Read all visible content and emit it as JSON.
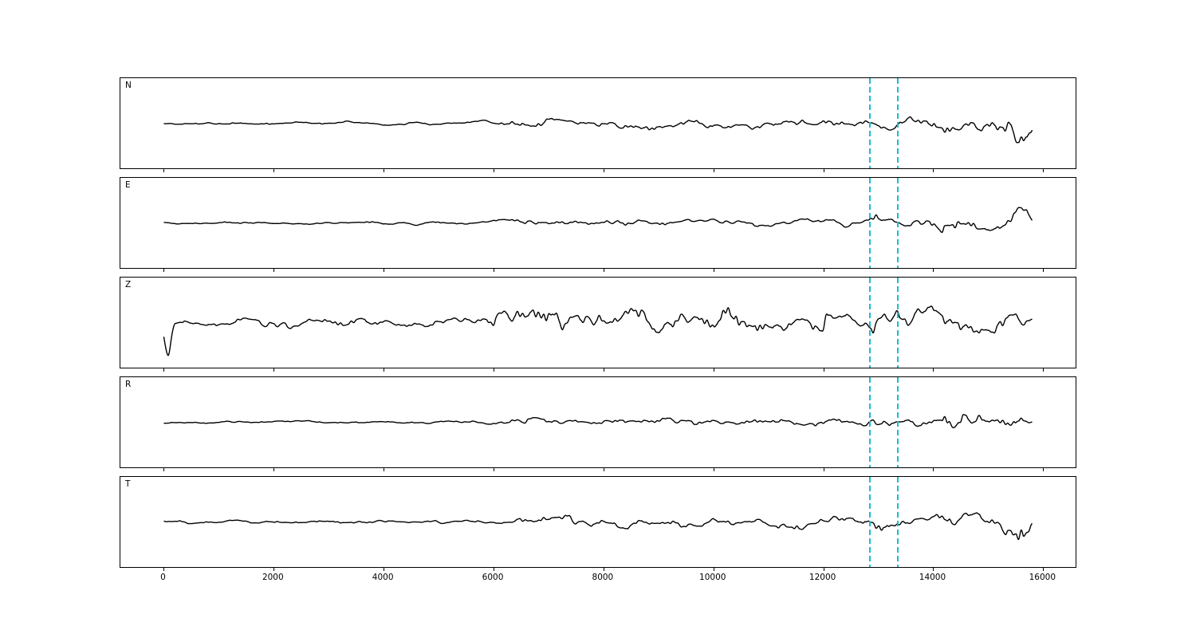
{
  "figure": {
    "background": "#ffffff",
    "frame_color": "#000000",
    "trace_color": "#000000",
    "marker_color": "#17becf"
  },
  "chart_data": {
    "type": "line",
    "title": "",
    "xlabel": "",
    "ylabel": "",
    "description": "Five-channel seismogram waveform display (channels N, E, Z, R, T) sharing one x-axis in samples; two dashed cyan vertical pick lines on every panel",
    "x_range": [
      -790,
      16590
    ],
    "x_ticks": [
      0,
      2000,
      4000,
      6000,
      8000,
      10000,
      12000,
      14000,
      16000
    ],
    "x_tick_labels": [
      "0",
      "2000",
      "4000",
      "6000",
      "8000",
      "10000",
      "12000",
      "14000",
      "16000"
    ],
    "grid": false,
    "legend": "none",
    "marker_lines_x": [
      12850,
      13350
    ],
    "marker_style": "dashed",
    "channels": [
      {
        "label": "N",
        "seed": 101,
        "data_start": 0,
        "data_end": 15800,
        "envelope": [
          [
            0,
            2.5
          ],
          [
            5500,
            3
          ],
          [
            6300,
            7
          ],
          [
            7500,
            8
          ],
          [
            9000,
            8
          ],
          [
            10500,
            7.5
          ],
          [
            12600,
            8
          ],
          [
            12900,
            16
          ],
          [
            13200,
            9
          ],
          [
            13800,
            9
          ],
          [
            14200,
            21
          ],
          [
            14600,
            14
          ],
          [
            15000,
            13
          ],
          [
            15300,
            30
          ],
          [
            15600,
            33
          ],
          [
            15800,
            12
          ]
        ],
        "spikes": []
      },
      {
        "label": "E",
        "seed": 202,
        "data_start": 0,
        "data_end": 15800,
        "envelope": [
          [
            0,
            2
          ],
          [
            5800,
            2.5
          ],
          [
            6500,
            5
          ],
          [
            9000,
            6
          ],
          [
            11000,
            5.5
          ],
          [
            12600,
            6
          ],
          [
            12900,
            19
          ],
          [
            13200,
            7
          ],
          [
            13900,
            7
          ],
          [
            14200,
            27
          ],
          [
            14600,
            13
          ],
          [
            15000,
            10
          ],
          [
            15400,
            22
          ],
          [
            15700,
            18
          ],
          [
            15800,
            8
          ]
        ],
        "spikes": []
      },
      {
        "label": "Z",
        "seed": 303,
        "data_start": 0,
        "data_end": 15800,
        "envelope": [
          [
            0,
            8
          ],
          [
            800,
            9.5
          ],
          [
            3000,
            9
          ],
          [
            5800,
            10
          ],
          [
            6300,
            20
          ],
          [
            6900,
            25
          ],
          [
            7600,
            27
          ],
          [
            8300,
            20
          ],
          [
            9500,
            23
          ],
          [
            10500,
            20
          ],
          [
            11500,
            19
          ],
          [
            12500,
            19
          ],
          [
            13000,
            23
          ],
          [
            13600,
            20
          ],
          [
            14200,
            26
          ],
          [
            14800,
            19
          ],
          [
            15300,
            23
          ],
          [
            15600,
            20
          ],
          [
            15800,
            10
          ]
        ],
        "spikes": [
          {
            "x": 70,
            "amp": -42,
            "w": 55
          }
        ]
      },
      {
        "label": "R",
        "seed": 404,
        "data_start": 0,
        "data_end": 15800,
        "envelope": [
          [
            0,
            2
          ],
          [
            5800,
            2.5
          ],
          [
            6300,
            6
          ],
          [
            9000,
            7
          ],
          [
            11000,
            6.5
          ],
          [
            12600,
            7
          ],
          [
            12900,
            14
          ],
          [
            13300,
            8
          ],
          [
            13900,
            8
          ],
          [
            14300,
            28
          ],
          [
            14700,
            16
          ],
          [
            15200,
            13
          ],
          [
            15500,
            21
          ],
          [
            15800,
            9
          ]
        ],
        "spikes": []
      },
      {
        "label": "T",
        "seed": 505,
        "data_start": 0,
        "data_end": 15800,
        "envelope": [
          [
            0,
            2.5
          ],
          [
            5800,
            3
          ],
          [
            6500,
            8
          ],
          [
            9000,
            9
          ],
          [
            11000,
            8.5
          ],
          [
            12600,
            9
          ],
          [
            12900,
            14
          ],
          [
            13400,
            10
          ],
          [
            14000,
            10
          ],
          [
            14300,
            19
          ],
          [
            14700,
            16
          ],
          [
            15200,
            13
          ],
          [
            15500,
            31
          ],
          [
            15700,
            24
          ],
          [
            15800,
            10
          ]
        ],
        "spikes": []
      }
    ]
  }
}
